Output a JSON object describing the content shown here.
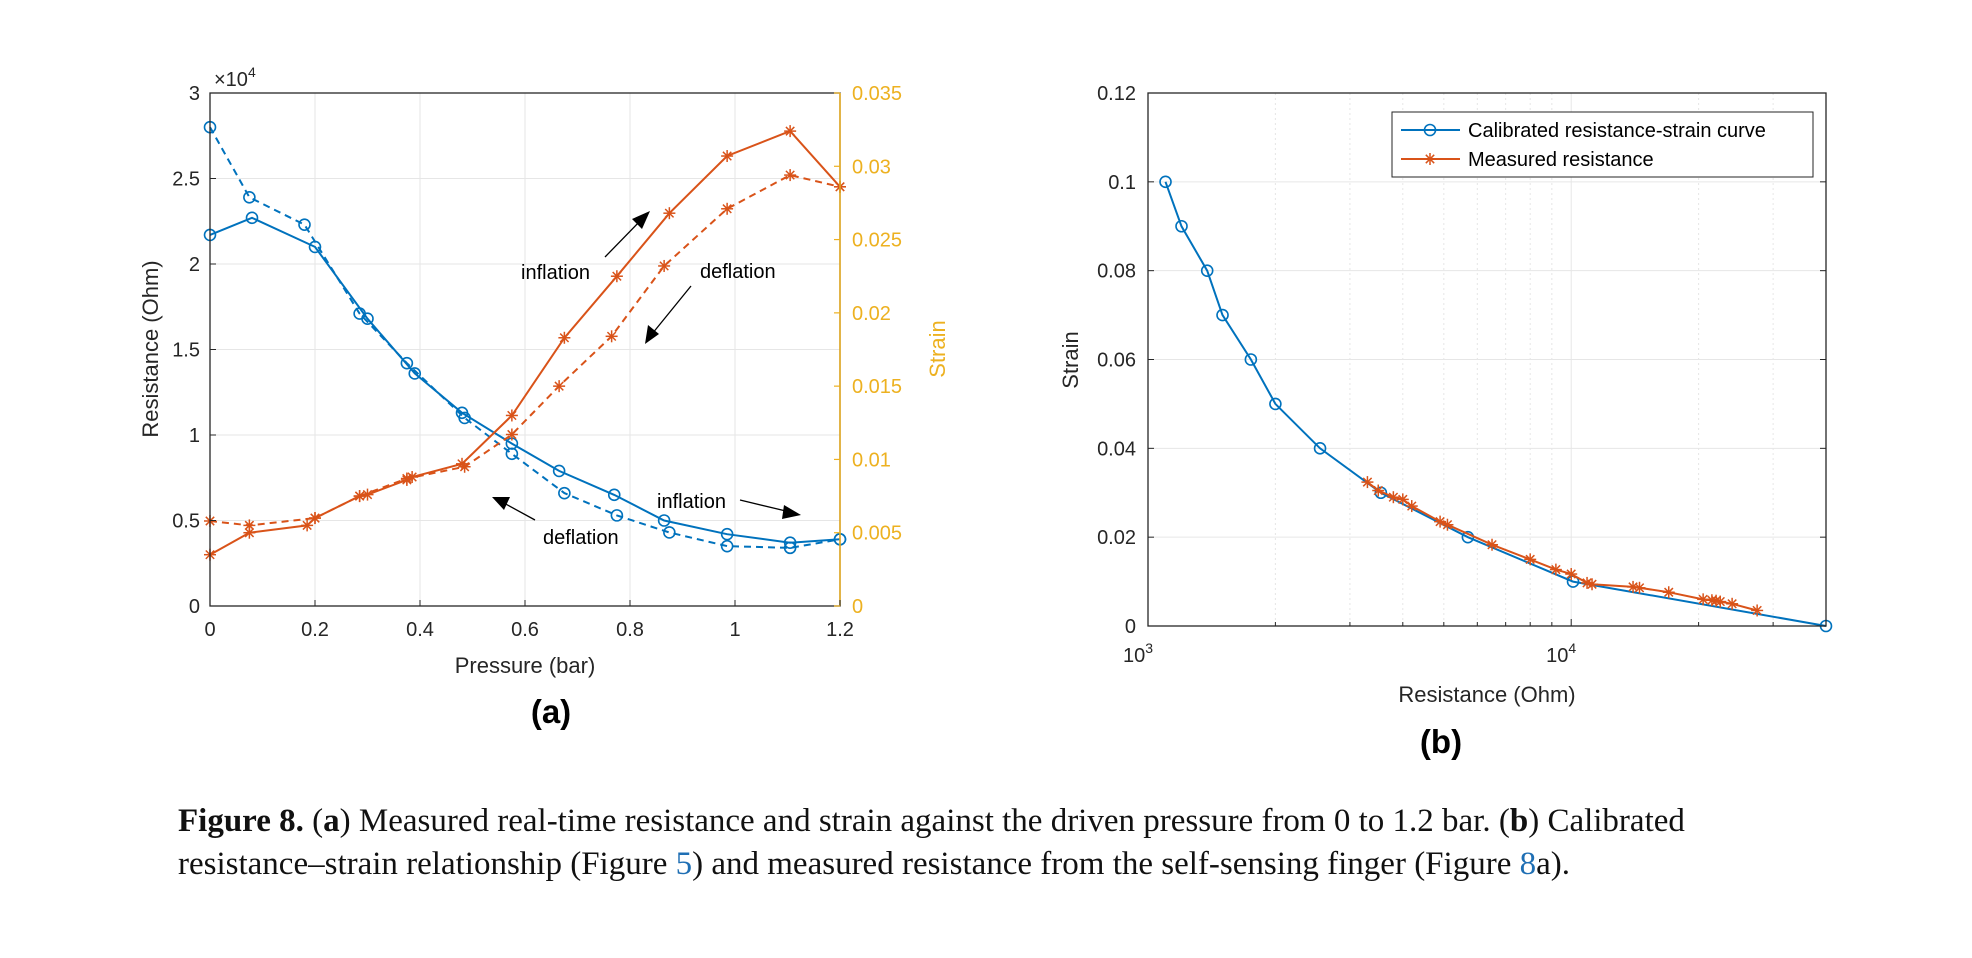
{
  "colors": {
    "blue": "#0072BD",
    "orange": "#D95319",
    "strain_axis": "#EDB120",
    "grid": "#e6e6e6",
    "link": "#1f6fb4"
  },
  "chart_data": [
    {
      "type": "line",
      "panel_label": "(a)",
      "xlabel": "Pressure (bar)",
      "ylabel_left": "Resistance (Ohm)",
      "ylabel_right": "Strain",
      "left_axis_multiplier": "×10",
      "left_axis_exponent": "4",
      "xlim": [
        0,
        1.2
      ],
      "ylim_left": [
        0,
        3
      ],
      "ylim_right": [
        0,
        0.035
      ],
      "xticks": [
        "0",
        "0.2",
        "0.4",
        "0.6",
        "0.8",
        "1",
        "1.2"
      ],
      "yticks_left": [
        "0",
        "0.5",
        "1",
        "1.5",
        "2",
        "2.5",
        "3"
      ],
      "yticks_right": [
        "0",
        "0.005",
        "0.01",
        "0.015",
        "0.02",
        "0.025",
        "0.03",
        "0.035"
      ],
      "grid": true,
      "series": [
        {
          "axis": "left",
          "color": "blue",
          "marker": "circle",
          "dash": false,
          "x": [
            0,
            0.08,
            0.2,
            0.3,
            0.39,
            0.48,
            0.575,
            0.665,
            0.77,
            0.865,
            0.985,
            1.105,
            1.2
          ],
          "y": [
            2.17,
            2.27,
            2.1,
            1.68,
            1.36,
            1.13,
            0.95,
            0.79,
            0.65,
            0.5,
            0.42,
            0.37,
            0.39
          ]
        },
        {
          "axis": "left",
          "color": "blue",
          "marker": "circle",
          "dash": true,
          "x": [
            0,
            0.075,
            0.18,
            0.285,
            0.375,
            0.485,
            0.575,
            0.675,
            0.775,
            0.875,
            0.985,
            1.105,
            1.2
          ],
          "y": [
            2.8,
            2.39,
            2.23,
            1.71,
            1.42,
            1.1,
            0.89,
            0.66,
            0.53,
            0.43,
            0.35,
            0.34,
            0.39
          ]
        },
        {
          "axis": "right",
          "color": "orange",
          "marker": "asterisk",
          "dash": false,
          "x": [
            0,
            0.075,
            0.185,
            0.2,
            0.285,
            0.3,
            0.375,
            0.385,
            0.48,
            0.575,
            0.675,
            0.775,
            0.875,
            0.985,
            1.105,
            1.2
          ],
          "y": [
            0.0035,
            0.005,
            0.0055,
            0.006,
            0.0075,
            0.0076,
            0.0086,
            0.0088,
            0.0097,
            0.013,
            0.0183,
            0.0225,
            0.0268,
            0.0307,
            0.0324,
            0.0286
          ]
        },
        {
          "axis": "right",
          "color": "orange",
          "marker": "asterisk",
          "dash": true,
          "x": [
            0,
            0.075,
            0.2,
            0.285,
            0.375,
            0.485,
            0.575,
            0.665,
            0.765,
            0.865,
            0.985,
            1.105,
            1.2
          ],
          "y": [
            0.0058,
            0.0055,
            0.006,
            0.0075,
            0.0087,
            0.0095,
            0.0117,
            0.015,
            0.0184,
            0.0232,
            0.0271,
            0.0294,
            0.0286
          ]
        }
      ],
      "annotations": [
        "inflation",
        "deflation",
        "inflation",
        "deflation"
      ]
    },
    {
      "type": "line",
      "panel_label": "(b)",
      "xlabel": "Resistance (Ohm)",
      "ylabel": "Strain",
      "x_scale": "log",
      "xlim": [
        1000,
        40000
      ],
      "ylim": [
        0,
        0.12
      ],
      "xticks": [
        {
          "base": "10",
          "exp": "3"
        },
        {
          "base": "10",
          "exp": "4"
        }
      ],
      "yticks": [
        "0",
        "0.02",
        "0.04",
        "0.06",
        "0.08",
        "0.1",
        "0.12"
      ],
      "grid": true,
      "legend_position": "top-right",
      "series": [
        {
          "name": "Calibrated resistance-strain curve",
          "color": "blue",
          "marker": "circle",
          "x": [
            1100,
            1200,
            1380,
            1500,
            1750,
            2000,
            2550,
            3550,
            5700,
            10100,
            40000
          ],
          "y": [
            0.1,
            0.09,
            0.08,
            0.07,
            0.06,
            0.05,
            0.04,
            0.03,
            0.02,
            0.01,
            0
          ]
        },
        {
          "name": "Measured resistance",
          "color": "orange",
          "marker": "asterisk",
          "x": [
            3300,
            3500,
            3800,
            4000,
            4200,
            4900,
            5100,
            6500,
            8000,
            9200,
            10000,
            10900,
            11200,
            14000,
            14500,
            17000,
            20500,
            21500,
            22000,
            22500,
            24000,
            27500
          ],
          "y": [
            0.0324,
            0.0305,
            0.029,
            0.0285,
            0.027,
            0.0235,
            0.0228,
            0.0183,
            0.015,
            0.0127,
            0.0117,
            0.0097,
            0.0094,
            0.0088,
            0.0086,
            0.0076,
            0.006,
            0.0058,
            0.0057,
            0.0055,
            0.005,
            0.0035
          ]
        }
      ]
    }
  ],
  "caption": {
    "figure_label": "Figure 8.",
    "part_a_open": "(",
    "part_a_letter": "a",
    "part_a_text": ") Measured real-time resistance and strain against the driven pressure from 0 to 1.2 bar.",
    "part_b_open": "(",
    "part_b_letter": "b",
    "part_b_text_1": ") Calibrated resistance–strain relationship (Figure ",
    "part_b_link_1": "5",
    "part_b_text_2": ") and measured resistance from the self-sensing finger (Figure ",
    "part_b_link_2": "8",
    "part_b_text_3": "a)."
  }
}
